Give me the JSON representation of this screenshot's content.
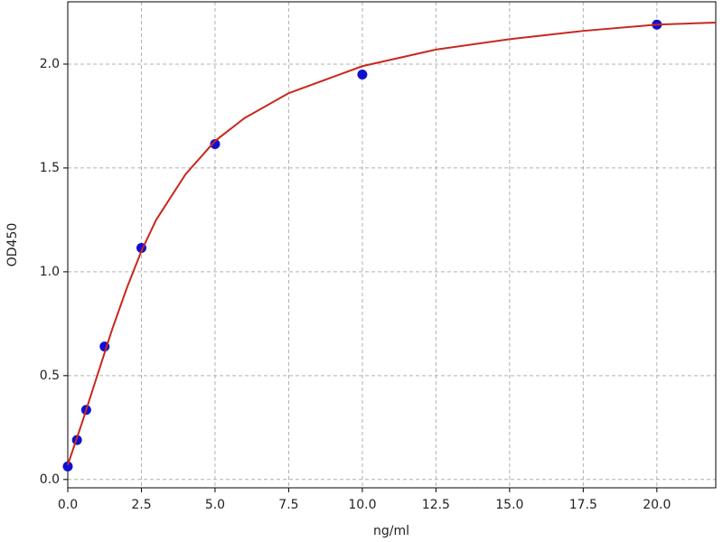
{
  "chart_data": {
    "type": "scatter",
    "xlabel": "ng/ml",
    "ylabel": "OD450",
    "xlim": [
      0,
      22
    ],
    "ylim": [
      -0.04,
      2.3
    ],
    "xticks": [
      {
        "value": 0,
        "label": "0.0"
      },
      {
        "value": 2.5,
        "label": "2.5"
      },
      {
        "value": 5,
        "label": "5.0"
      },
      {
        "value": 7.5,
        "label": "7.5"
      },
      {
        "value": 10,
        "label": "10.0"
      },
      {
        "value": 12.5,
        "label": "12.5"
      },
      {
        "value": 15,
        "label": "15.0"
      },
      {
        "value": 17.5,
        "label": "17.5"
      },
      {
        "value": 20,
        "label": "20.0"
      }
    ],
    "yticks": [
      {
        "value": 0,
        "label": "0.0"
      },
      {
        "value": 0.5,
        "label": "0.5"
      },
      {
        "value": 1,
        "label": "1.0"
      },
      {
        "value": 1.5,
        "label": "1.5"
      },
      {
        "value": 2,
        "label": "2.0"
      }
    ],
    "grid": true,
    "series": [
      {
        "type": "scatter",
        "color": "#1010d0",
        "x": [
          0,
          0.3125,
          0.625,
          1.25,
          2.5,
          5,
          10,
          20
        ],
        "values": [
          0.063,
          0.19,
          0.335,
          0.64,
          1.115,
          1.615,
          1.95,
          2.19
        ]
      },
      {
        "type": "line",
        "color": "#c8281e",
        "x": [
          0,
          0.5,
          1,
          1.5,
          2,
          2.5,
          3,
          4,
          5,
          6,
          7.5,
          10,
          12.5,
          15,
          17.5,
          20,
          22
        ],
        "values": [
          0.07,
          0.28,
          0.5,
          0.72,
          0.92,
          1.1,
          1.25,
          1.47,
          1.63,
          1.74,
          1.86,
          1.99,
          2.07,
          2.12,
          2.16,
          2.19,
          2.2
        ]
      }
    ]
  }
}
